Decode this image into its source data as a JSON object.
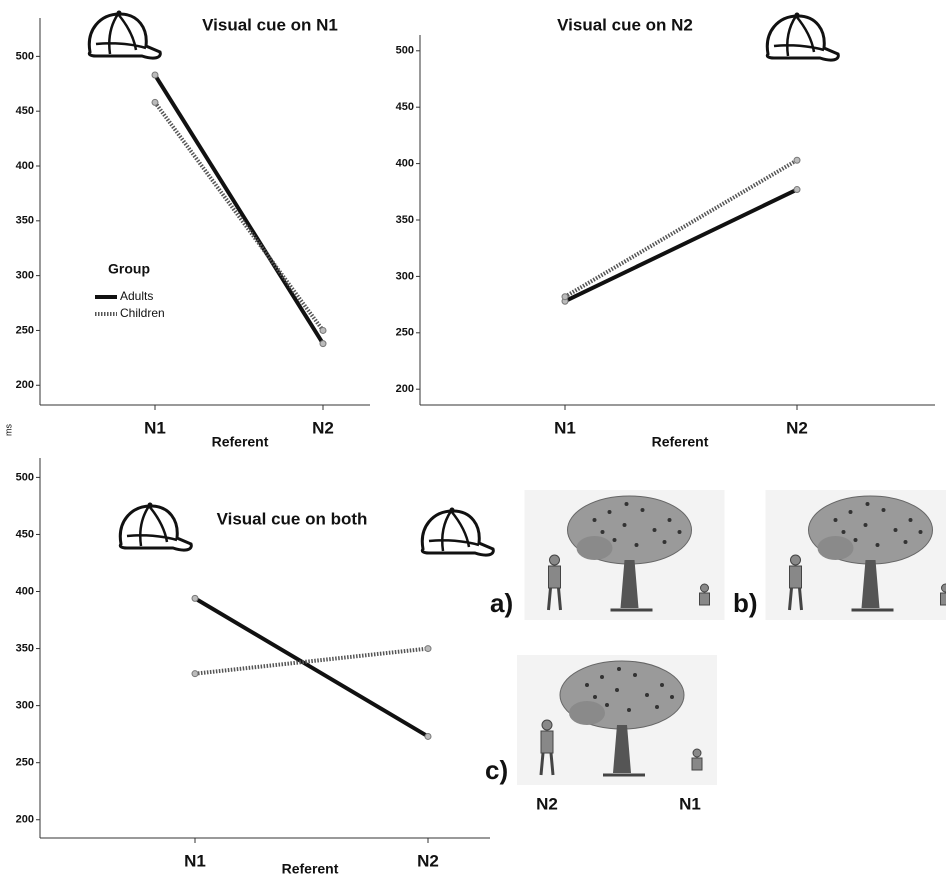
{
  "chart_data": [
    {
      "type": "line",
      "title": "Visual cue on N1",
      "xlabel": "Referent",
      "categories": [
        "N1",
        "N2"
      ],
      "series": [
        {
          "name": "Adults",
          "color": "#111111",
          "style": "solid",
          "values": [
            483,
            238
          ]
        },
        {
          "name": "Children",
          "color": "#555555",
          "style": "dotted",
          "values": [
            458,
            250
          ]
        }
      ],
      "ylim": [
        182,
        535
      ],
      "yticks": [
        200,
        250,
        300,
        350,
        400,
        450,
        500
      ],
      "legend": "center left",
      "legend_title": "Group"
    },
    {
      "type": "line",
      "title": "Visual cue on N2",
      "xlabel": "Referent",
      "categories": [
        "N1",
        "N2"
      ],
      "series": [
        {
          "name": "Adults",
          "color": "#111111",
          "style": "solid",
          "values": [
            278,
            377
          ]
        },
        {
          "name": "Children",
          "color": "#555555",
          "style": "dotted",
          "values": [
            282,
            403
          ]
        }
      ],
      "ylim": [
        186,
        514
      ],
      "yticks": [
        200,
        250,
        300,
        350,
        400,
        450,
        500
      ]
    },
    {
      "type": "line",
      "title": "Visual cue on both",
      "xlabel": "Referent",
      "categories": [
        "N1",
        "N2"
      ],
      "series": [
        {
          "name": "Adults",
          "color": "#111111",
          "style": "solid",
          "values": [
            394,
            273
          ]
        },
        {
          "name": "Children",
          "color": "#555555",
          "style": "dotted",
          "values": [
            328,
            350
          ]
        }
      ],
      "ylim": [
        184,
        517
      ],
      "yticks": [
        200,
        250,
        300,
        350,
        400,
        450,
        500
      ]
    }
  ],
  "figure": {
    "ylabel": "ms",
    "panels": [
      "a)",
      "b)",
      "c)"
    ],
    "panel_c_labels": [
      "N2",
      "N1"
    ]
  }
}
